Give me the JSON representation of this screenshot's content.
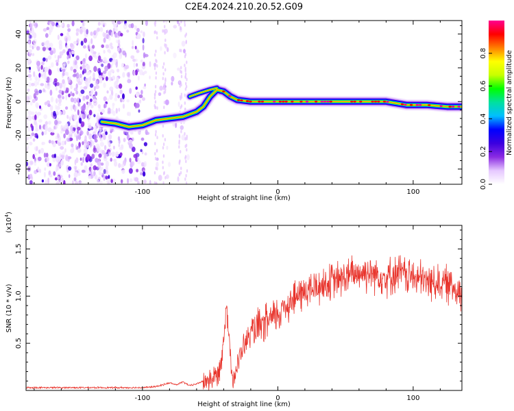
{
  "title": "C2E4.2024.210.20.52.G09",
  "colors": {
    "line": "#e8332b",
    "frame": "#000000",
    "background": "#ffffff"
  },
  "chart_data": [
    {
      "type": "heatmap",
      "xlabel": "Height of straight line (km)",
      "ylabel": "Frequency (Hz)",
      "xlim": [
        -186,
        136
      ],
      "ylim": [
        -49,
        48
      ],
      "xticks": [
        -100,
        0,
        100
      ],
      "xtick_labels": [
        "-100",
        "0",
        "100"
      ],
      "yticks": [
        -40,
        -20,
        0,
        20,
        40
      ],
      "ytick_labels": [
        "-40",
        "-20",
        "0",
        "20",
        "40"
      ],
      "colorbar": {
        "label": "Normalized spectral amplitude",
        "range": [
          0.0,
          1.0
        ],
        "ticks": [
          0.0,
          0.2,
          0.4,
          0.6,
          0.8
        ],
        "tick_labels": [
          "0.0",
          "0.2",
          "0.4",
          "0.6",
          "0.8"
        ],
        "colormap": [
          "#ffffff",
          "#e6c8ff",
          "#8a2be2",
          "#3b00e0",
          "#0000ff",
          "#00bfff",
          "#00e0a0",
          "#00ff00",
          "#c8ff00",
          "#ffff00",
          "#ff8000",
          "#ff0000",
          "#ff0090"
        ]
      },
      "noise_region": {
        "x": [
          -186,
          -66
        ],
        "y": [
          -49,
          48
        ]
      },
      "ridge": [
        {
          "x": -130,
          "y": -12
        },
        {
          "x": -120,
          "y": -13
        },
        {
          "x": -110,
          "y": -15
        },
        {
          "x": -100,
          "y": -14
        },
        {
          "x": -90,
          "y": -11
        },
        {
          "x": -80,
          "y": -10
        },
        {
          "x": -70,
          "y": -9
        },
        {
          "x": -60,
          "y": -6
        },
        {
          "x": -55,
          "y": -3
        },
        {
          "x": -50,
          "y": 3
        },
        {
          "x": -45,
          "y": 7
        },
        {
          "x": -40,
          "y": 6
        },
        {
          "x": -35,
          "y": 3
        },
        {
          "x": -30,
          "y": 1
        },
        {
          "x": -20,
          "y": 0
        },
        {
          "x": 0,
          "y": 0
        },
        {
          "x": 20,
          "y": 0
        },
        {
          "x": 40,
          "y": 0
        },
        {
          "x": 60,
          "y": 0
        },
        {
          "x": 80,
          "y": 0
        },
        {
          "x": 95,
          "y": -2
        },
        {
          "x": 110,
          "y": -2
        },
        {
          "x": 125,
          "y": -3
        },
        {
          "x": 136,
          "y": -3
        }
      ],
      "upper_branch": [
        {
          "x": -65,
          "y": 3
        },
        {
          "x": -58,
          "y": 5
        },
        {
          "x": -50,
          "y": 7
        },
        {
          "x": -45,
          "y": 8
        }
      ]
    },
    {
      "type": "line",
      "xlabel": "Height of straight line (km)",
      "ylabel": "SNR (10 * v/v)",
      "yscale_label": "(x10",
      "yscale_exponent": "4",
      "xlim": [
        -186,
        136
      ],
      "ylim": [
        0,
        1.75
      ],
      "xticks": [
        -100,
        0,
        100
      ],
      "xtick_labels": [
        "-100",
        "0",
        "100"
      ],
      "yticks": [
        0.5,
        1.0,
        1.5
      ],
      "ytick_labels": [
        "0.5",
        "1.0",
        "1.5"
      ],
      "series": [
        {
          "x": [
            -186,
            -170,
            -150,
            -130,
            -110,
            -100,
            -90,
            -85,
            -80,
            -75,
            -70,
            -65,
            -60,
            -55,
            -50,
            -45,
            -42,
            -40,
            -38,
            -36,
            -35,
            -34,
            -32,
            -30,
            -28,
            -26,
            -24,
            -22,
            -20,
            -15,
            -10,
            -5,
            0,
            5,
            10,
            20,
            30,
            40,
            50,
            60,
            70,
            80,
            90,
            100,
            110,
            120,
            130,
            136
          ],
          "y": [
            0.03,
            0.03,
            0.03,
            0.03,
            0.03,
            0.03,
            0.04,
            0.06,
            0.08,
            0.06,
            0.09,
            0.05,
            0.07,
            0.1,
            0.12,
            0.15,
            0.3,
            0.55,
            0.95,
            0.55,
            0.35,
            0.2,
            0.15,
            0.25,
            0.35,
            0.45,
            0.5,
            0.55,
            0.6,
            0.65,
            0.7,
            0.75,
            0.8,
            0.9,
            0.95,
            1.05,
            1.1,
            1.15,
            1.2,
            1.25,
            1.25,
            1.2,
            1.25,
            1.2,
            1.15,
            1.15,
            1.1,
            1.05
          ]
        }
      ]
    }
  ]
}
